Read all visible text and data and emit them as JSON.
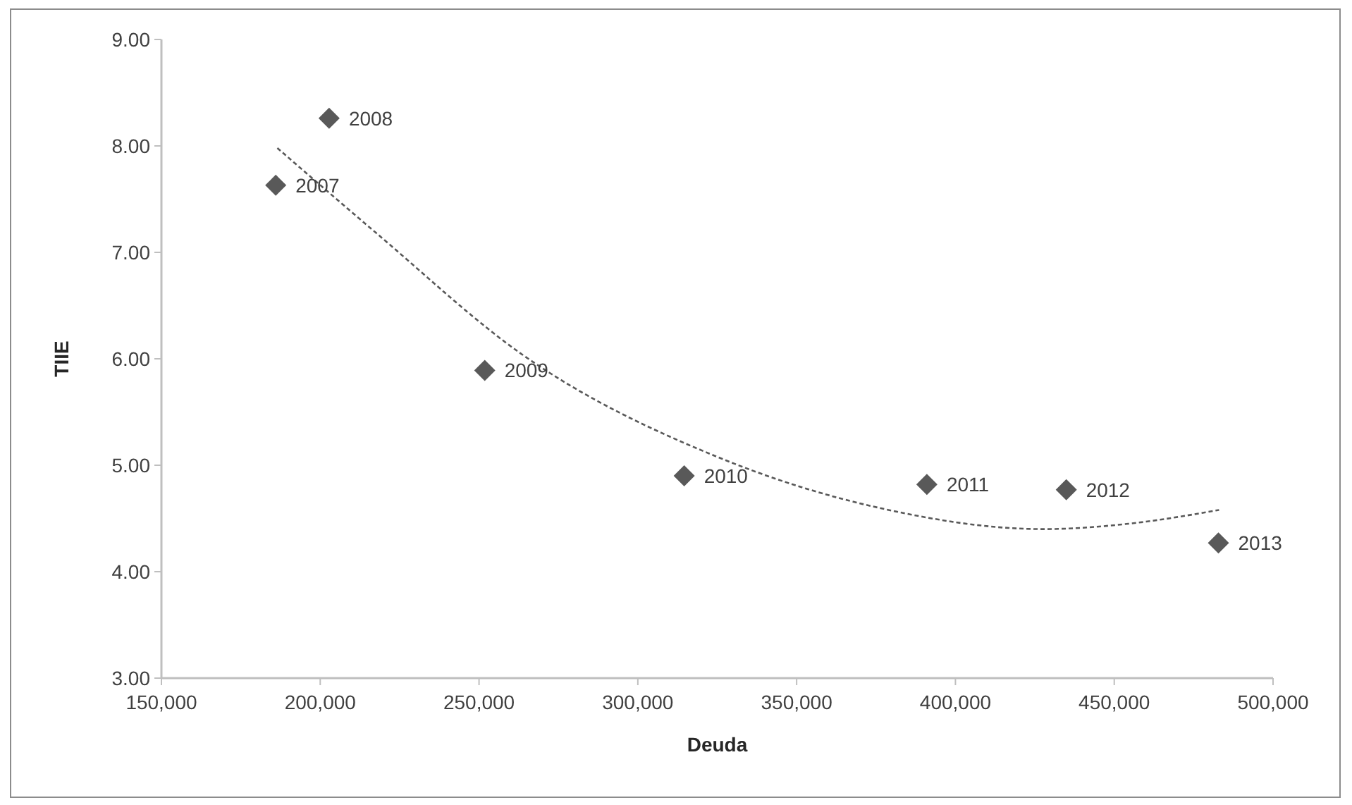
{
  "chart_data": {
    "type": "scatter",
    "xlabel": "Deuda",
    "ylabel": "TIIE",
    "x": [
      186000,
      202800,
      251800,
      314600,
      391000,
      434900,
      482800
    ],
    "series": [
      {
        "color": "#595959",
        "marker": "diamond",
        "values": [
          7.63,
          8.26,
          5.89,
          4.9,
          4.82,
          4.77,
          4.27
        ]
      },
      {
        "type": "line",
        "color": "#595959",
        "line_style": "dashed",
        "marker": "none",
        "x": [
          186500,
          217700,
          263600,
          324900,
          375900,
          427700,
          454400,
          483000
        ],
        "values": [
          7.98,
          7.18,
          6.04,
          5.08,
          4.6,
          4.4,
          4.45,
          4.58
        ]
      }
    ],
    "annotations": [
      {
        "text": "2007",
        "x": 186000,
        "y": 7.63
      },
      {
        "text": "2008",
        "x": 202800,
        "y": 8.26
      },
      {
        "text": "2009",
        "x": 251800,
        "y": 5.89
      },
      {
        "text": "2010",
        "x": 314600,
        "y": 4.9
      },
      {
        "text": "2011",
        "x": 391000,
        "y": 4.82
      },
      {
        "text": "2012",
        "x": 434900,
        "y": 4.77
      },
      {
        "text": "2013",
        "x": 482800,
        "y": 4.27
      }
    ],
    "xlim": [
      150000,
      500000
    ],
    "xticks": [
      {
        "value": 150000,
        "label": "150,000"
      },
      {
        "value": 200000,
        "label": "200,000"
      },
      {
        "value": 250000,
        "label": "250,000"
      },
      {
        "value": 300000,
        "label": "300,000"
      },
      {
        "value": 350000,
        "label": "350,000"
      },
      {
        "value": 400000,
        "label": "400,000"
      },
      {
        "value": 450000,
        "label": "450,000"
      },
      {
        "value": 500000,
        "label": "500,000"
      }
    ],
    "ylim": [
      3,
      9
    ],
    "yticks": [
      {
        "value": 3,
        "label": "3.00"
      },
      {
        "value": 4,
        "label": "4.00"
      },
      {
        "value": 5,
        "label": "5.00"
      },
      {
        "value": 6,
        "label": "6.00"
      },
      {
        "value": 7,
        "label": "7.00"
      },
      {
        "value": 8,
        "label": "8.00"
      },
      {
        "value": 9,
        "label": "9.00"
      }
    ],
    "grid": false
  }
}
